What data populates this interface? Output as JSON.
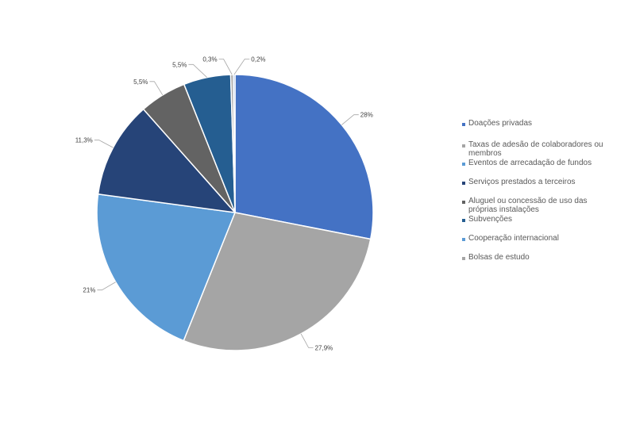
{
  "chart_data": {
    "type": "pie",
    "categories": [
      "Doações privadas",
      "Taxas de adesão de colaboradores ou membros",
      "Eventos de arrecadação de fundos",
      "Serviços prestados a terceiros",
      "Aluguel ou concessão de uso das próprias instalações",
      "Subvenções",
      "Cooperação internacional",
      "Bolsas de estudo"
    ],
    "values": [
      28,
      27.9,
      21,
      11.3,
      5.5,
      5.5,
      0.3,
      0.2
    ],
    "data_labels": [
      "28%",
      "27,9%",
      "21%",
      "11,3%",
      "5,5%",
      "5,5%",
      "0,3%",
      "0,2%"
    ],
    "slice_colors": [
      "#4472C4",
      "#A5A5A5",
      "#5B9BD5",
      "#264478",
      "#636363",
      "#255E91",
      "#9E9E9E",
      "#7F9FD1"
    ],
    "legend_colors": [
      "#4472C4",
      "#A5A5A5",
      "#5B9BD5",
      "#264478",
      "#636363",
      "#255E91",
      "#5B9BD5",
      "#A5A5A5"
    ],
    "legend_position": "right",
    "start_angle_deg": 0,
    "direction": "clockwise"
  }
}
